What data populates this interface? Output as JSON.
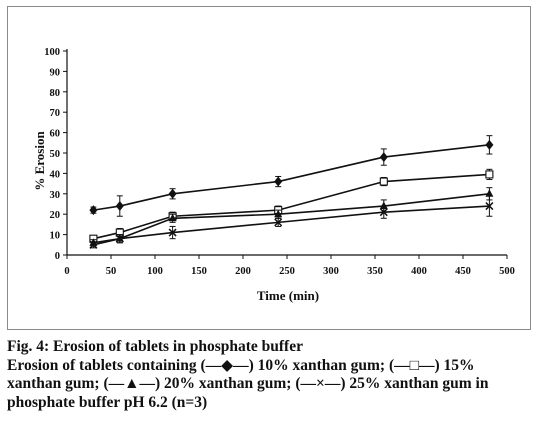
{
  "chart_data": {
    "type": "line",
    "xlabel": "Time (min)",
    "ylabel": "% Erosion",
    "xlim": [
      0,
      500
    ],
    "ylim": [
      0,
      100
    ],
    "xticks": [
      0,
      50,
      100,
      150,
      200,
      250,
      300,
      350,
      400,
      450,
      500
    ],
    "yticks": [
      0,
      10,
      20,
      30,
      40,
      50,
      60,
      70,
      80,
      90,
      100
    ],
    "grid": false,
    "legend": "none",
    "x": [
      30,
      60,
      120,
      240,
      360,
      480
    ],
    "series": [
      {
        "marker": "diamond",
        "values": [
          22,
          24,
          30,
          36,
          48,
          54
        ],
        "errors": [
          1.5,
          5,
          2.5,
          2.5,
          4,
          4.5
        ]
      },
      {
        "marker": "square-open",
        "values": [
          8,
          11,
          19,
          22,
          36,
          39.5
        ],
        "errors": [
          1.5,
          2,
          2,
          2,
          2,
          2.5
        ]
      },
      {
        "marker": "triangle",
        "values": [
          6,
          8,
          18,
          20,
          24,
          30
        ],
        "errors": [
          1.5,
          2,
          2,
          2,
          3,
          3
        ]
      },
      {
        "marker": "cross",
        "values": [
          5,
          8,
          11,
          16,
          21,
          24
        ],
        "errors": [
          1.5,
          2,
          3,
          2,
          3,
          5
        ]
      }
    ]
  },
  "caption": {
    "line1": "Fig. 4: Erosion of tablets in phosphate buffer",
    "line2": "Erosion of tablets containing (—◆—) 10% xanthan gum; (—□—) 15%",
    "line3": "xanthan gum; (—▲—) 20% xanthan gum; (—×—) 25% xanthan gum in",
    "line4": "phosphate buffer pH 6.2 (n=3)"
  }
}
